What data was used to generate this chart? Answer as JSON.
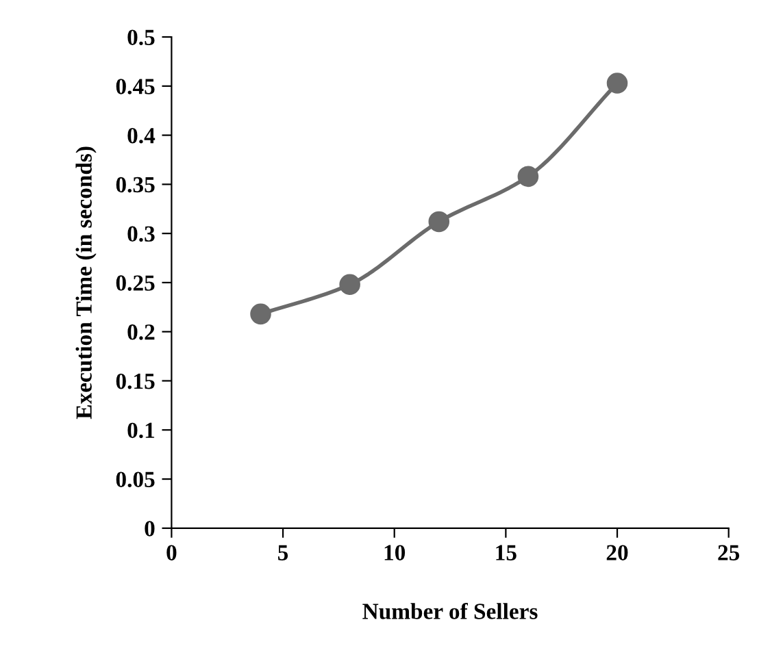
{
  "chart_data": {
    "type": "line",
    "xlabel": "Number of Sellers",
    "ylabel": "Execution Time (in seconds)",
    "x": [
      4,
      8,
      12,
      16,
      20
    ],
    "series": [
      {
        "color": "#6b6b6b",
        "values": [
          0.218,
          0.248,
          0.312,
          0.358,
          0.453
        ]
      }
    ],
    "xlim": [
      0,
      25
    ],
    "xticks": [
      0,
      5,
      10,
      15,
      20,
      25
    ],
    "ylim": [
      0,
      0.5
    ],
    "yticks": [
      0,
      0.05,
      0.1,
      0.15,
      0.2,
      0.25,
      0.3,
      0.35,
      0.4,
      0.45,
      0.5
    ],
    "grid": false,
    "legend": false,
    "marker": "circle",
    "line_style": "solid"
  }
}
